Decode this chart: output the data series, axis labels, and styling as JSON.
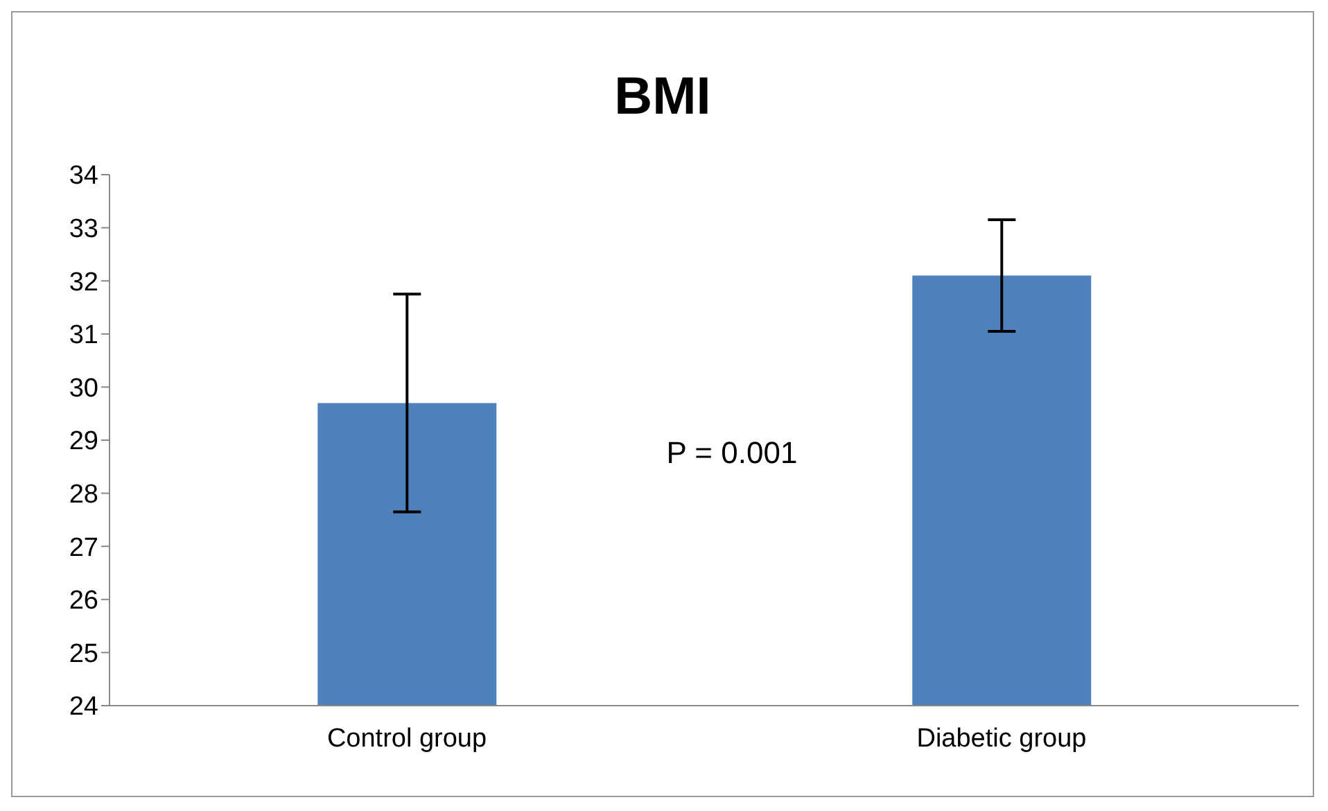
{
  "chart_data": {
    "type": "bar",
    "title": "BMI",
    "categories": [
      "Control group",
      "Diabetic group"
    ],
    "values": [
      29.7,
      32.1
    ],
    "errors": [
      2.05,
      1.05
    ],
    "color": "#4f81bd",
    "ylim": [
      24,
      34
    ],
    "yticks": [
      24,
      25,
      26,
      27,
      28,
      29,
      30,
      31,
      32,
      33,
      34
    ],
    "grid": false,
    "annotations": [
      "P = 0.001"
    ]
  }
}
